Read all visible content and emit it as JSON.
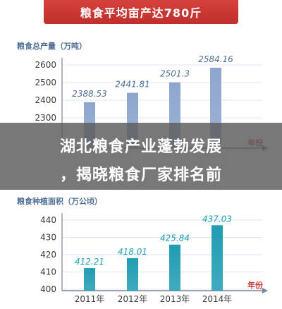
{
  "banner": {
    "title": "粮食平均亩产达780斤"
  },
  "headline": {
    "line1": "湖北粮食产业蓬勃发展",
    "line2": "，揭晓粮食厂家排名前"
  },
  "colors": {
    "banner": "#c83532",
    "bar_top": "#8da6cf",
    "bar_bottom": "#1f9cb3",
    "axis": "#7a8596",
    "grid": "#dfe5ec",
    "label_top": "#4f6f94",
    "label_bottom": "#1a9fb5",
    "unit": "#c83532",
    "overlay": "#595959"
  },
  "chart_data": [
    {
      "type": "bar",
      "title": "粮食总产量（万吨）",
      "categories": [
        "2011年",
        "2012年",
        "2013年",
        "2014年"
      ],
      "values": [
        2388.53,
        2441.81,
        2501.3,
        2584.16
      ],
      "value_labels": [
        "2388.53",
        "2441.81",
        "2501.3",
        "2584.16"
      ],
      "yticks": [
        "2600",
        "2500",
        "2400",
        "2300"
      ],
      "ylim": [
        2200,
        2620
      ],
      "xunit": "年份",
      "grid": true,
      "legend": "none"
    },
    {
      "type": "bar",
      "title": "粮食种植面积（万公顷）",
      "categories": [
        "2011年",
        "2012年",
        "2013年",
        "2014年"
      ],
      "values": [
        412.21,
        418.01,
        425.84,
        437.03
      ],
      "value_labels": [
        "412.21",
        "418.01",
        "425.84",
        "437.03"
      ],
      "yticks": [
        "440",
        "430",
        "420",
        "410",
        "400"
      ],
      "ylim": [
        400,
        442
      ],
      "xunit": "年份",
      "grid": true,
      "legend": "none"
    }
  ]
}
